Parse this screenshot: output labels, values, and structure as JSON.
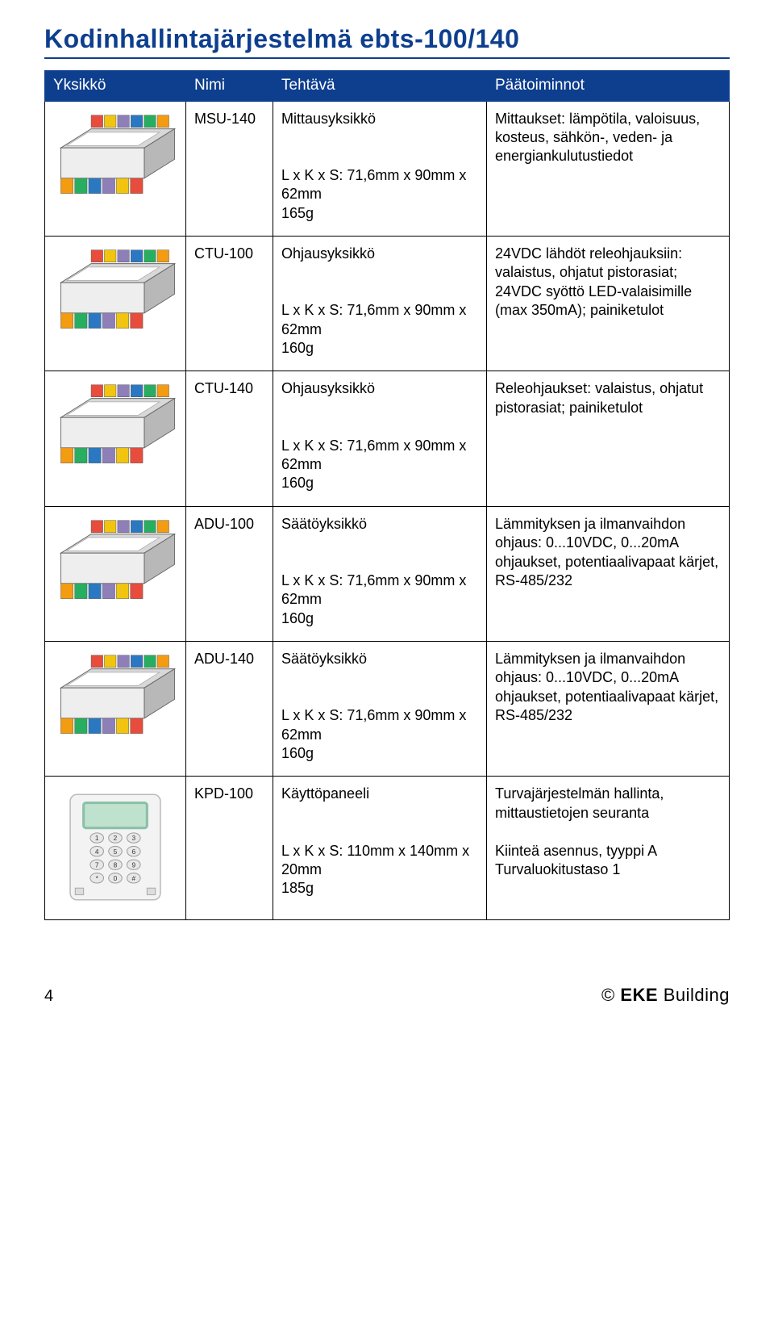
{
  "title": "Kodinhallintajärjestelmä ebts-100/140",
  "table": {
    "headers": [
      "Yksikkö",
      "Nimi",
      "Tehtävä",
      "Päätoiminnot"
    ],
    "rows": [
      {
        "name": "MSU-140",
        "task_label": "Mittausyksikkö",
        "dims": "L x K x S: 71,6mm x 90mm x 62mm\n165g",
        "func": "Mittaukset: lämpötila, valoisuus, kosteus, sähkön-, veden- ja energiankulutustiedot",
        "module": {
          "body": "#eeeeee",
          "top": "#d8d8d8",
          "side": "#b8b8b8",
          "terminals": [
            "#f39c12",
            "#27ae60",
            "#2b78c2",
            "#8e7fb8",
            "#f1c40f",
            "#e74c3c"
          ]
        }
      },
      {
        "name": "CTU-100",
        "task_label": "Ohjausyksikkö",
        "dims": "L x K x S: 71,6mm x 90mm x 62mm\n160g",
        "func": "24VDC lähdöt releohjauksiin: valaistus, ohjatut pistorasiat; 24VDC syöttö LED-valaisimille (max 350mA); painiketulot",
        "module": {
          "body": "#eeeeee",
          "top": "#d8d8d8",
          "side": "#b8b8b8",
          "terminals": [
            "#f39c12",
            "#27ae60",
            "#2b78c2",
            "#8e7fb8",
            "#f1c40f",
            "#e74c3c"
          ]
        }
      },
      {
        "name": "CTU-140",
        "task_label": "Ohjausyksikkö",
        "dims": "L x K x S: 71,6mm x 90mm x 62mm\n160g",
        "func": "Releohjaukset: valaistus, ohjatut pistorasiat; painiketulot",
        "module": {
          "body": "#eeeeee",
          "top": "#d8d8d8",
          "side": "#b8b8b8",
          "terminals": [
            "#f39c12",
            "#27ae60",
            "#2b78c2",
            "#8e7fb8",
            "#f1c40f",
            "#e74c3c"
          ]
        }
      },
      {
        "name": "ADU-100",
        "task_label": "Säätöyksikkö",
        "dims": "L x K x S: 71,6mm x 90mm x 62mm\n160g",
        "func": "Lämmityksen ja ilmanvaihdon ohjaus: 0...10VDC, 0...20mA ohjaukset, potentiaalivapaat kärjet, RS-485/232",
        "module": {
          "body": "#eeeeee",
          "top": "#d8d8d8",
          "side": "#b8b8b8",
          "terminals": [
            "#f39c12",
            "#27ae60",
            "#2b78c2",
            "#8e7fb8",
            "#f1c40f",
            "#e74c3c"
          ]
        }
      },
      {
        "name": "ADU-140",
        "task_label": "Säätöyksikkö",
        "dims": "L x K x S: 71,6mm x 90mm x 62mm\n160g",
        "func": "Lämmityksen ja ilmanvaihdon ohjaus: 0...10VDC, 0...20mA ohjaukset, potentiaalivapaat kärjet, RS-485/232",
        "module": {
          "body": "#eeeeee",
          "top": "#d8d8d8",
          "side": "#b8b8b8",
          "terminals": [
            "#f39c12",
            "#27ae60",
            "#2b78c2",
            "#8e7fb8",
            "#f1c40f",
            "#e74c3c"
          ]
        }
      },
      {
        "name": "KPD-100",
        "task_label": "Käyttöpaneeli",
        "dims": "L x K x S: 110mm x 140mm x 20mm\n185g",
        "func": "Turvajärjestelmän hallinta, mittaustietojen seuranta\n\nKiinteä asennus, tyyppi A\nTurvaluokitustaso 1",
        "keypad": {
          "body": "#f3f3f3",
          "screen_border": "#8cc0a8",
          "screen": "#bfe2cf",
          "key_fill": "#e8e8e8",
          "key_stroke": "#9e9e9e",
          "keys": [
            [
              "1",
              "2",
              "3"
            ],
            [
              "4",
              "5",
              "6"
            ],
            [
              "7",
              "8",
              "9"
            ],
            [
              "*",
              "0",
              "#"
            ]
          ]
        }
      }
    ]
  },
  "footer": {
    "page_num": "4",
    "copyright": "©",
    "brand_bold": "EKE",
    "brand_rest": " Building"
  }
}
